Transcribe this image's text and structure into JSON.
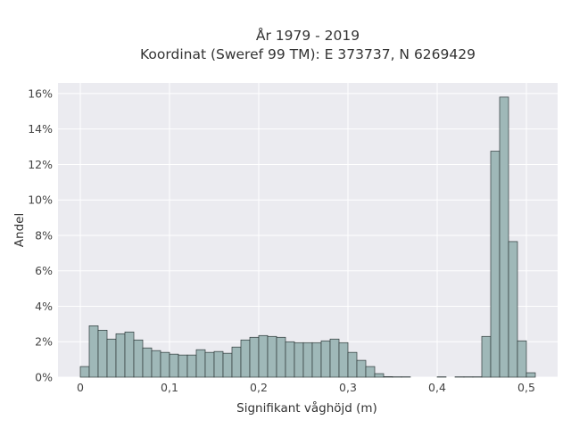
{
  "chart_data": {
    "type": "bar",
    "title_line1": "År 1979 - 2019",
    "title_line2": "Koordinat (Sweref 99 TM): E 373737, N 6269429",
    "xlabel": "Signifikant våghöjd (m)",
    "ylabel": "Andel",
    "xlim": [
      -0.025,
      0.535
    ],
    "ylim": [
      0,
      16.6
    ],
    "bin_width": 0.01,
    "x_ticks": [
      {
        "value": 0,
        "label": "0"
      },
      {
        "value": 0.1,
        "label": "0,1"
      },
      {
        "value": 0.2,
        "label": "0,2"
      },
      {
        "value": 0.3,
        "label": "0,3"
      },
      {
        "value": 0.4,
        "label": "0,4"
      },
      {
        "value": 0.5,
        "label": "0,5"
      }
    ],
    "y_ticks": [
      {
        "value": 0,
        "label": "0%"
      },
      {
        "value": 2,
        "label": "2%"
      },
      {
        "value": 4,
        "label": "4%"
      },
      {
        "value": 6,
        "label": "6%"
      },
      {
        "value": 8,
        "label": "8%"
      },
      {
        "value": 10,
        "label": "10%"
      },
      {
        "value": 12,
        "label": "12%"
      },
      {
        "value": 14,
        "label": "14%"
      },
      {
        "value": 16,
        "label": "16%"
      }
    ],
    "bins_start": [
      0.0,
      0.01,
      0.02,
      0.03,
      0.04,
      0.05,
      0.06,
      0.07,
      0.08,
      0.09,
      0.1,
      0.11,
      0.12,
      0.13,
      0.14,
      0.15,
      0.16,
      0.17,
      0.18,
      0.19,
      0.2,
      0.21,
      0.22,
      0.23,
      0.24,
      0.25,
      0.26,
      0.27,
      0.28,
      0.29,
      0.3,
      0.31,
      0.32,
      0.33,
      0.34,
      0.35,
      0.36,
      0.37,
      0.38,
      0.39,
      0.4,
      0.41,
      0.42,
      0.43,
      0.44,
      0.45,
      0.46,
      0.47,
      0.48,
      0.49,
      0.5
    ],
    "values": [
      0.6,
      2.9,
      2.65,
      2.15,
      2.45,
      2.55,
      2.1,
      1.65,
      1.5,
      1.4,
      1.3,
      1.25,
      1.25,
      1.55,
      1.4,
      1.45,
      1.35,
      1.7,
      2.1,
      2.25,
      2.35,
      2.3,
      2.25,
      2.0,
      1.95,
      1.95,
      1.95,
      2.05,
      2.15,
      1.95,
      1.4,
      0.95,
      0.6,
      0.2,
      0.03,
      0.02,
      0.02,
      0.0,
      0.0,
      0.0,
      0.02,
      0.0,
      0.02,
      0.02,
      0.02,
      2.3,
      12.75,
      15.8,
      7.65,
      2.05,
      0.25
    ],
    "colors": {
      "bar_fill": "#9fb8b8",
      "bar_stroke": "#2f3a3a",
      "plot_bg": "#ebebf0",
      "grid": "#ffffff"
    },
    "grid": true
  }
}
